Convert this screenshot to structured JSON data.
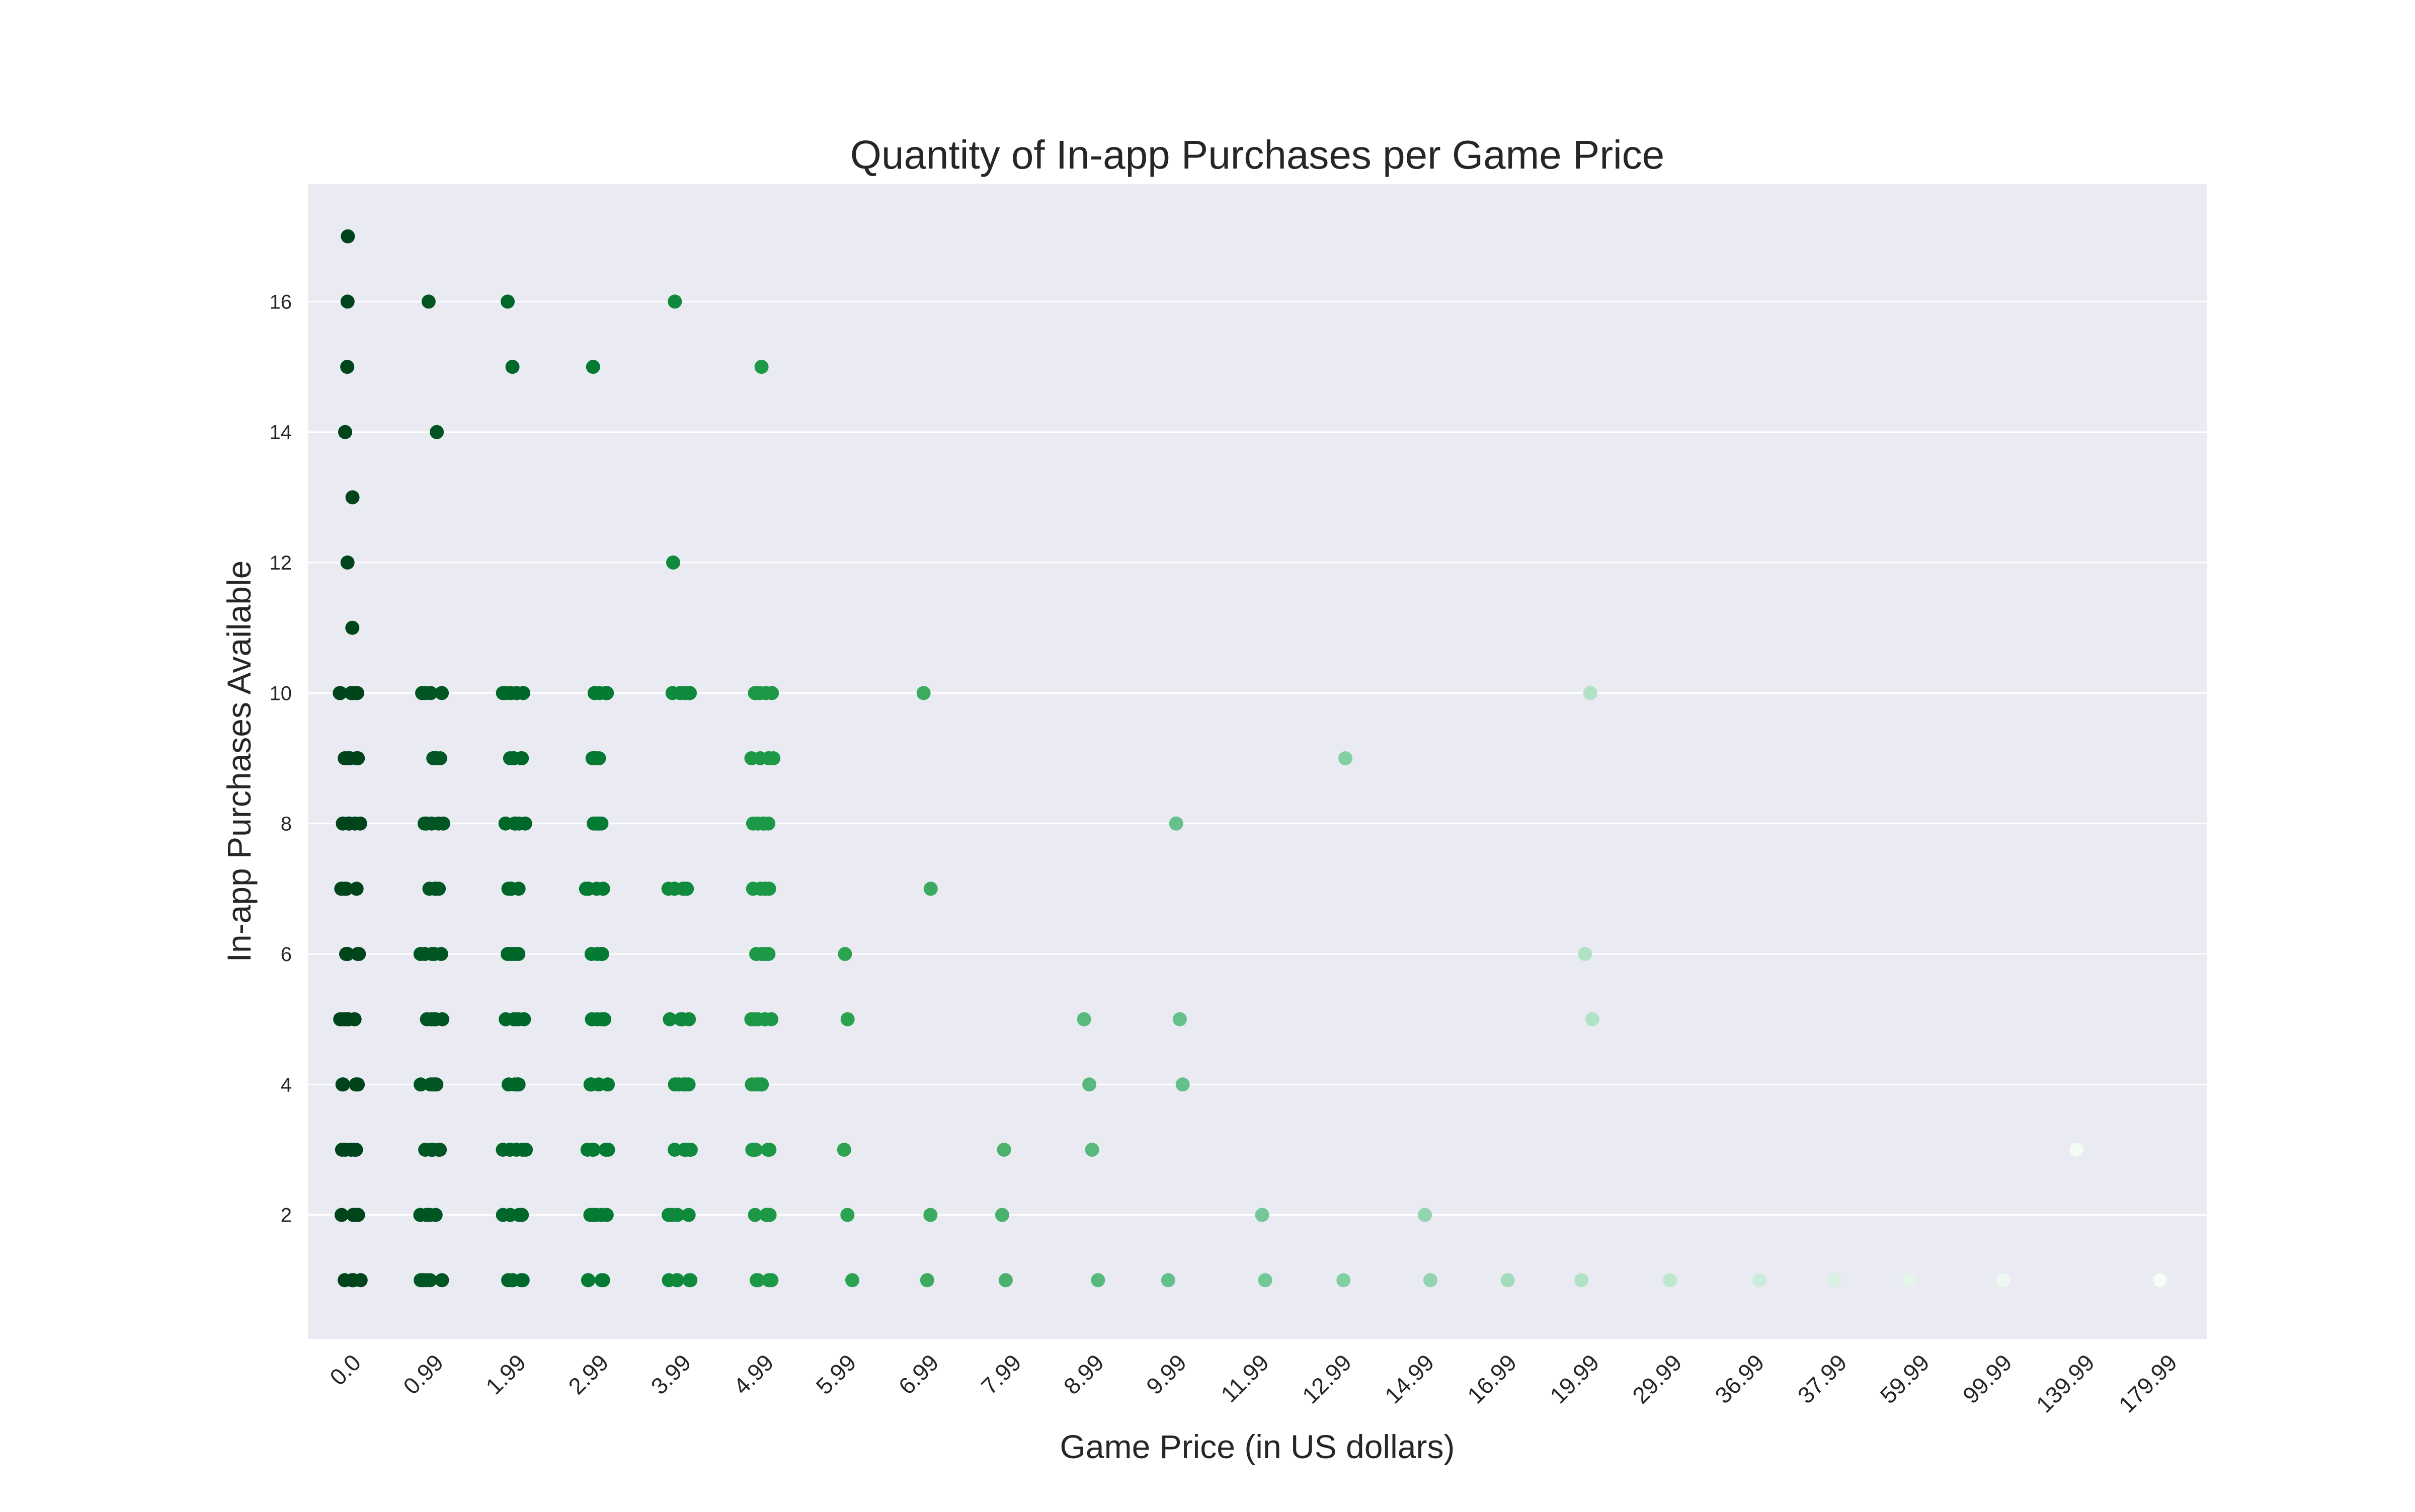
{
  "chart_data": {
    "type": "scatter",
    "title": "Quantity of In-app Purchases per Game Price",
    "xlabel": "Game Price (in US dollars)",
    "ylabel": "In-app Purchases Available",
    "x_axis": "categorical",
    "categories": [
      "0.0",
      "0.99",
      "1.99",
      "2.99",
      "3.99",
      "4.99",
      "5.99",
      "6.99",
      "7.99",
      "8.99",
      "9.99",
      "11.99",
      "12.99",
      "14.99",
      "16.99",
      "19.99",
      "29.99",
      "36.99",
      "37.99",
      "59.99",
      "99.99",
      "139.99",
      "179.99"
    ],
    "y_ticks": [
      2,
      4,
      6,
      8,
      10,
      12,
      14,
      16
    ],
    "ylim": [
      0.1,
      17.8
    ],
    "grid": true,
    "background": "#eaeaf2",
    "grid_color": "#ffffff",
    "palette": [
      "#00441b",
      "#005522",
      "#00672a",
      "#057a33",
      "#0f8a3c",
      "#1d9846",
      "#2ca350",
      "#3dab5f",
      "#4ab26d",
      "#57ba7c",
      "#65c18b",
      "#74c898",
      "#83cfa4",
      "#93d5b0",
      "#a3dcbc",
      "#b1e2c6",
      "#bee7cf",
      "#cbecd8",
      "#d8f1e2",
      "#e3f5ea",
      "#ecf8f0",
      "#f3fbf6",
      "#f7fcf9"
    ],
    "series": [
      {
        "category": "0.0",
        "y": [
          1,
          2,
          3,
          4,
          5,
          6,
          7,
          8,
          9,
          10,
          11,
          12,
          13,
          14,
          15,
          16,
          17
        ]
      },
      {
        "category": "0.99",
        "y": [
          1,
          2,
          3,
          4,
          5,
          6,
          7,
          8,
          9,
          10,
          14,
          16
        ]
      },
      {
        "category": "1.99",
        "y": [
          1,
          2,
          3,
          4,
          5,
          6,
          7,
          8,
          9,
          10,
          15,
          16
        ]
      },
      {
        "category": "2.99",
        "y": [
          1,
          2,
          3,
          4,
          5,
          6,
          7,
          8,
          9,
          10,
          15
        ]
      },
      {
        "category": "3.99",
        "y": [
          1,
          2,
          3,
          4,
          5,
          7,
          10,
          12,
          16
        ]
      },
      {
        "category": "4.99",
        "y": [
          1,
          2,
          3,
          4,
          5,
          6,
          7,
          8,
          9,
          10,
          15
        ]
      },
      {
        "category": "5.99",
        "y": [
          1,
          2,
          3,
          5,
          6
        ]
      },
      {
        "category": "6.99",
        "y": [
          1,
          2,
          7,
          10
        ]
      },
      {
        "category": "7.99",
        "y": [
          1,
          2,
          3
        ]
      },
      {
        "category": "8.99",
        "y": [
          1,
          3,
          4,
          5
        ]
      },
      {
        "category": "9.99",
        "y": [
          1,
          4,
          5,
          8
        ]
      },
      {
        "category": "11.99",
        "y": [
          1,
          2
        ]
      },
      {
        "category": "12.99",
        "y": [
          1,
          9
        ]
      },
      {
        "category": "14.99",
        "y": [
          1,
          2
        ]
      },
      {
        "category": "16.99",
        "y": [
          1
        ]
      },
      {
        "category": "19.99",
        "y": [
          1,
          5,
          6,
          10
        ]
      },
      {
        "category": "29.99",
        "y": [
          1
        ]
      },
      {
        "category": "36.99",
        "y": [
          1
        ]
      },
      {
        "category": "37.99",
        "y": [
          1
        ]
      },
      {
        "category": "59.99",
        "y": [
          1
        ]
      },
      {
        "category": "99.99",
        "y": [
          1
        ]
      },
      {
        "category": "139.99",
        "y": [
          3
        ]
      },
      {
        "category": "179.99",
        "y": [
          1
        ]
      }
    ]
  }
}
